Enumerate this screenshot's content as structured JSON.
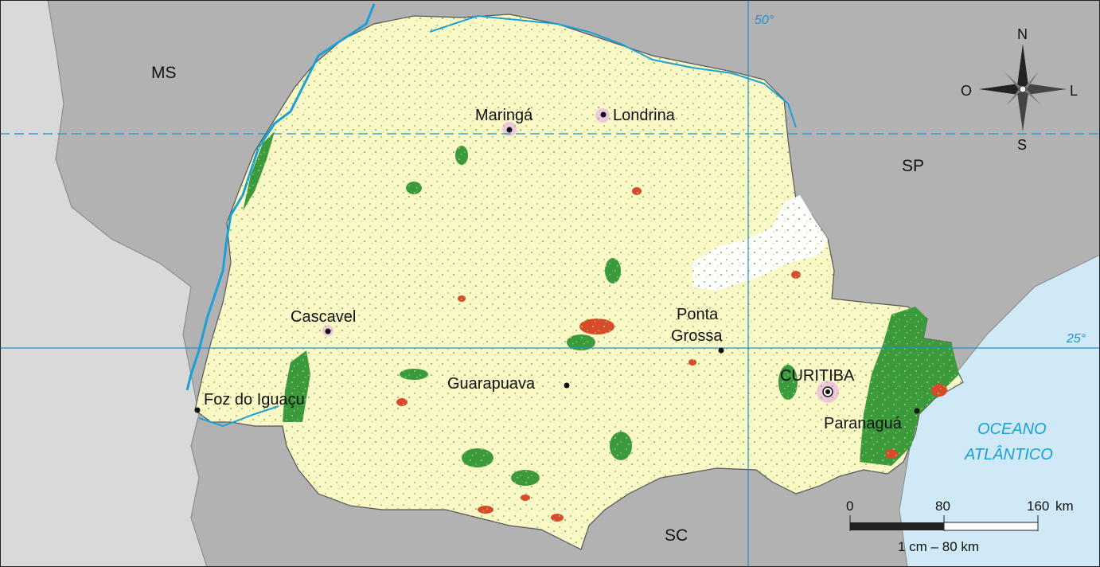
{
  "map": {
    "neighbors": {
      "ms": "MS",
      "sp": "SP",
      "sc": "SC"
    },
    "ocean": {
      "line1": "OCEANO",
      "line2": "ATLÂNTICO"
    },
    "graticule": {
      "meridian_label": "50°",
      "parallel_label": "25°"
    },
    "cities": {
      "maringa": "Maringá",
      "londrina": "Londrina",
      "cascavel": "Cascavel",
      "ponta_grossa_1": "Ponta",
      "ponta_grossa_2": "Grossa",
      "guarapuava": "Guarapuava",
      "foz": "Foz do Iguaçu",
      "curitiba": "CURITIBA",
      "paranagua": "Paranaguá"
    },
    "compass": {
      "north": "N",
      "south": "S",
      "east": "L",
      "west": "O"
    },
    "scale": {
      "tick_0": "0",
      "tick_80": "80",
      "tick_160": "160",
      "unit": "km",
      "ratio": "1 cm – 80 km"
    },
    "colors": {
      "state_fill": "#fbf8c8",
      "neighbor_fill": "#b2b2b2",
      "outer_fill": "#d9d9d9",
      "water": "#cfeaf6",
      "water_line": "#1aa0d8",
      "forest": "#3b9a3b",
      "light_green": "#9cc962",
      "red": "#d84a2a",
      "urban": "#f0c8dc",
      "white_area": "#ffffff"
    }
  }
}
